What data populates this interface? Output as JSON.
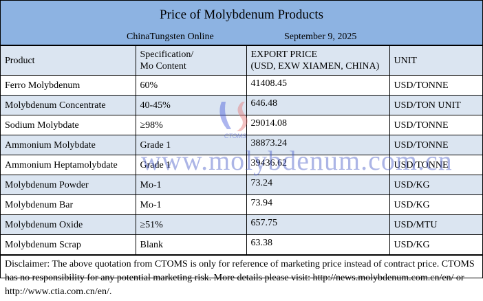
{
  "title": "Price of Molybdenum Products",
  "source": "ChinaTungsten Online",
  "date": "September 9, 2025",
  "headers": {
    "product": "Product",
    "spec_line1": "Specification/",
    "spec_line2": "Mo Content",
    "price_line1": "EXPORT PRICE",
    "price_line2": "(USD, EXW XIAMEN, CHINA)",
    "unit": "UNIT"
  },
  "rows": [
    {
      "product": "Ferro Molybdenum",
      "spec": "60%",
      "price": "41408.45",
      "unit": "USD/TONNE"
    },
    {
      "product": "Molybdenum Concentrate",
      "spec": "40-45%",
      "price": "646.48",
      "unit": "USD/TON UNIT"
    },
    {
      "product": "Sodium Molybdate",
      "spec": "≥98%",
      "price": "29014.08",
      "unit": "USD/TONNE"
    },
    {
      "product": "Ammonium Molybdate",
      "spec": "Grade 1",
      "price": "38873.24",
      "unit": "USD/TONNE"
    },
    {
      "product": "Ammonium Heptamolybdate",
      "spec": "Grade 1",
      "price": "39436.62",
      "unit": "USD/TONNE"
    },
    {
      "product": "Molybdenum Powder",
      "spec": "Mo-1",
      "price": "73.24",
      "unit": "USD/KG"
    },
    {
      "product": "Molybdenum Bar",
      "spec": "Mo-1",
      "price": "73.94",
      "unit": "USD/KG"
    },
    {
      "product": "Molybdenum Oxide",
      "spec": "≥51%",
      "price": "657.75",
      "unit": "USD/MTU"
    },
    {
      "product": "Molybdenum Scrap",
      "spec": "Blank",
      "price": "63.38",
      "unit": "USD/KG"
    }
  ],
  "disclaimer": "Disclaimer: The above quotation from CTOMS is only for reference of marketing price instead of contract price. CTOMS has no responsibility for any potential marketing risk. More details please visit: http://news.molybdenum.com.cn/en/ or http://www.ctia.com.cn/en/.",
  "watermark": "www.molybdenum.com.cn",
  "logo_text": "CTOMS",
  "colors": {
    "title_bg": "#8db3e2",
    "alt_row": "#dbe5f1"
  }
}
